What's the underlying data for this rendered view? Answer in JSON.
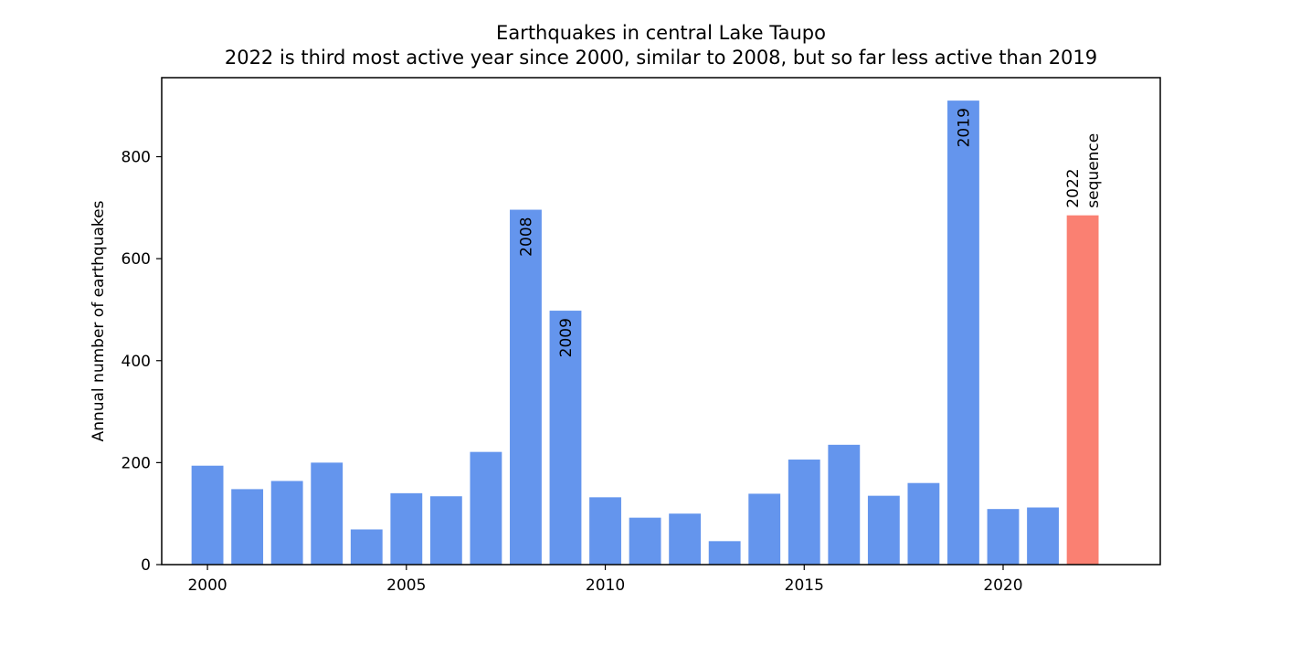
{
  "chart_data": {
    "type": "bar",
    "title": "Earthquakes in central Lake Taupo",
    "subtitle": "2022 is third most active year since 2000, similar to 2008, but so far less active than 2019",
    "xlabel": "",
    "ylabel": "Annual number of earthquakes",
    "x": [
      2000,
      2001,
      2002,
      2003,
      2004,
      2005,
      2006,
      2007,
      2008,
      2009,
      2010,
      2011,
      2012,
      2013,
      2014,
      2015,
      2016,
      2017,
      2018,
      2019,
      2020,
      2021,
      2022
    ],
    "values": [
      194,
      148,
      164,
      200,
      69,
      140,
      134,
      221,
      696,
      498,
      132,
      92,
      100,
      46,
      139,
      206,
      235,
      135,
      160,
      910,
      109,
      112,
      685
    ],
    "xlim": [
      1998.85,
      2023.95
    ],
    "ylim": [
      0,
      955
    ],
    "xticks": [
      2000,
      2005,
      2010,
      2015,
      2020
    ],
    "yticks": [
      0,
      200,
      400,
      600,
      800
    ],
    "colors": {
      "default": "#6495ED",
      "highlight": "#FA8072"
    },
    "highlight_x": 2022,
    "bar_labels": [
      {
        "x": 2008,
        "lines": [
          "2008"
        ],
        "inside": true
      },
      {
        "x": 2009,
        "lines": [
          "2009"
        ],
        "inside": true
      },
      {
        "x": 2019,
        "lines": [
          "2019"
        ],
        "inside": true
      },
      {
        "x": 2022,
        "lines": [
          "2022",
          "sequence"
        ],
        "inside": false
      }
    ],
    "grid": false,
    "legend": "none"
  }
}
